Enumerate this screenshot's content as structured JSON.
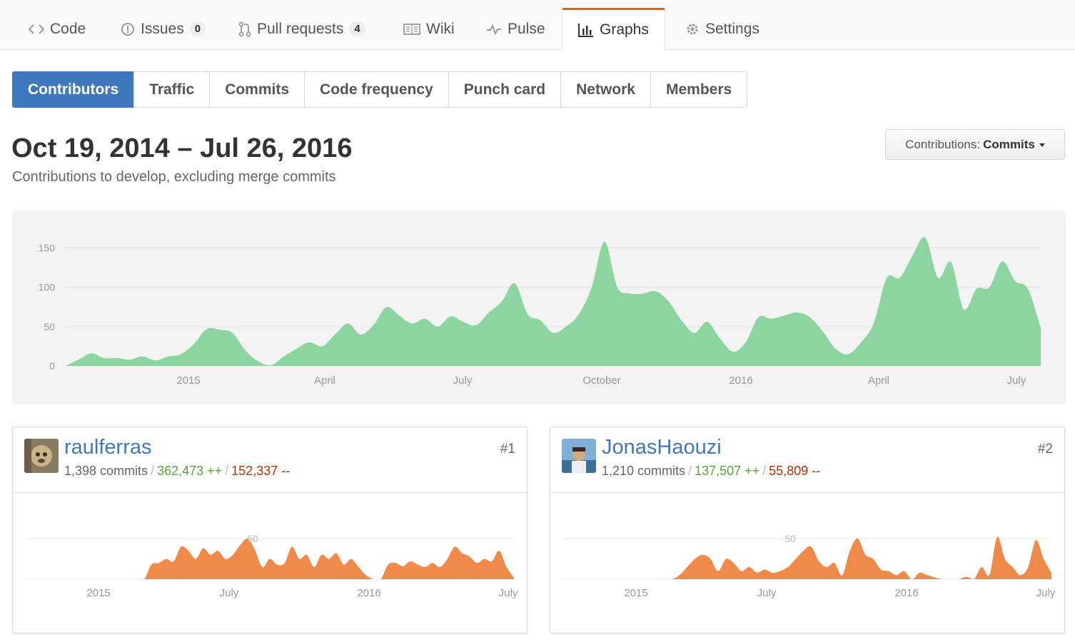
{
  "tabs": [
    {
      "label": "Code",
      "icon": "code-icon"
    },
    {
      "label": "Issues",
      "counter": "0",
      "icon": "issue-icon"
    },
    {
      "label": "Pull requests",
      "counter": "4",
      "icon": "pull-request-icon"
    },
    {
      "label": "Wiki",
      "icon": "book-icon"
    },
    {
      "label": "Pulse",
      "icon": "pulse-icon"
    },
    {
      "label": "Graphs",
      "icon": "graph-icon",
      "selected": true
    },
    {
      "label": "Settings",
      "icon": "gear-icon"
    }
  ],
  "subnav": [
    "Contributors",
    "Traffic",
    "Commits",
    "Code frequency",
    "Punch card",
    "Network",
    "Members"
  ],
  "range_title": "Oct 19, 2014 – Jul 26, 2016",
  "range_sub": "Contributions to develop, excluding merge commits",
  "contrib_select": {
    "prefix": "Contributions:",
    "value": "Commits"
  },
  "colors": {
    "accent": "#4078c0",
    "area_main": "#8cd4a0",
    "area_person": "#f08a4b",
    "add": "#55a532",
    "del": "#bd2c00",
    "tab_accent": "#e36209"
  },
  "chart_data": [
    {
      "type": "area",
      "title": "",
      "x_ticks": [
        "2015",
        "April",
        "July",
        "October",
        "2016",
        "April",
        "July"
      ],
      "y_ticks": [
        0,
        50,
        100,
        150
      ],
      "ylim": [
        0,
        175
      ],
      "grid": true,
      "series": [
        {
          "values": [
            0,
            8,
            16,
            10,
            10,
            8,
            12,
            7,
            12,
            15,
            28,
            47,
            46,
            42,
            20,
            6,
            1,
            12,
            22,
            30,
            25,
            40,
            54,
            40,
            52,
            75,
            64,
            54,
            60,
            50,
            63,
            56,
            52,
            68,
            82,
            105,
            66,
            58,
            42,
            50,
            66,
            100,
            158,
            100,
            92,
            92,
            95,
            82,
            58,
            42,
            56,
            35,
            18,
            30,
            62,
            60,
            64,
            68,
            62,
            44,
            22,
            15,
            30,
            55,
            112,
            112,
            140,
            163,
            112,
            132,
            72,
            98,
            100,
            133,
            108,
            98,
            48
          ]
        }
      ]
    },
    {
      "type": "area",
      "x_ticks": [
        "2015",
        "July",
        "2016",
        "July"
      ],
      "y_ticks": [
        50
      ],
      "series": [
        {
          "values": [
            0,
            0,
            0,
            0,
            0,
            0,
            0,
            0,
            0,
            0,
            0,
            0,
            0,
            0,
            0,
            0,
            0,
            18,
            20,
            25,
            22,
            40,
            35,
            25,
            38,
            30,
            35,
            25,
            30,
            42,
            50,
            36,
            15,
            25,
            18,
            20,
            40,
            25,
            30,
            15,
            30,
            25,
            32,
            18,
            25,
            15,
            5,
            0,
            0,
            18,
            20,
            16,
            22,
            18,
            15,
            20,
            15,
            25,
            40,
            32,
            28,
            20,
            25,
            22,
            35,
            15,
            2
          ]
        }
      ]
    },
    {
      "type": "area",
      "x_ticks": [
        "2015",
        "July",
        "2016",
        "July"
      ],
      "y_ticks": [
        50
      ],
      "series": [
        {
          "values": [
            0,
            0,
            0,
            0,
            0,
            0,
            0,
            0,
            0,
            0,
            0,
            0,
            0,
            0,
            0,
            5,
            15,
            25,
            30,
            25,
            10,
            25,
            20,
            10,
            15,
            8,
            12,
            8,
            10,
            15,
            25,
            35,
            40,
            22,
            15,
            20,
            5,
            35,
            50,
            30,
            25,
            12,
            10,
            5,
            10,
            0,
            8,
            5,
            2,
            0,
            0,
            0,
            3,
            0,
            15,
            5,
            52,
            25,
            15,
            5,
            15,
            48,
            25,
            8
          ]
        }
      ]
    }
  ],
  "contributors": [
    {
      "name": "raulferras",
      "rank": "#1",
      "commits": "1,398 commits",
      "sep": "/",
      "additions": "362,473 ++",
      "deletions": "152,337 --"
    },
    {
      "name": "JonasHaouzi",
      "rank": "#2",
      "commits": "1,210 commits",
      "sep": "/",
      "additions": "137,507 ++",
      "deletions": "55,809 --"
    }
  ]
}
